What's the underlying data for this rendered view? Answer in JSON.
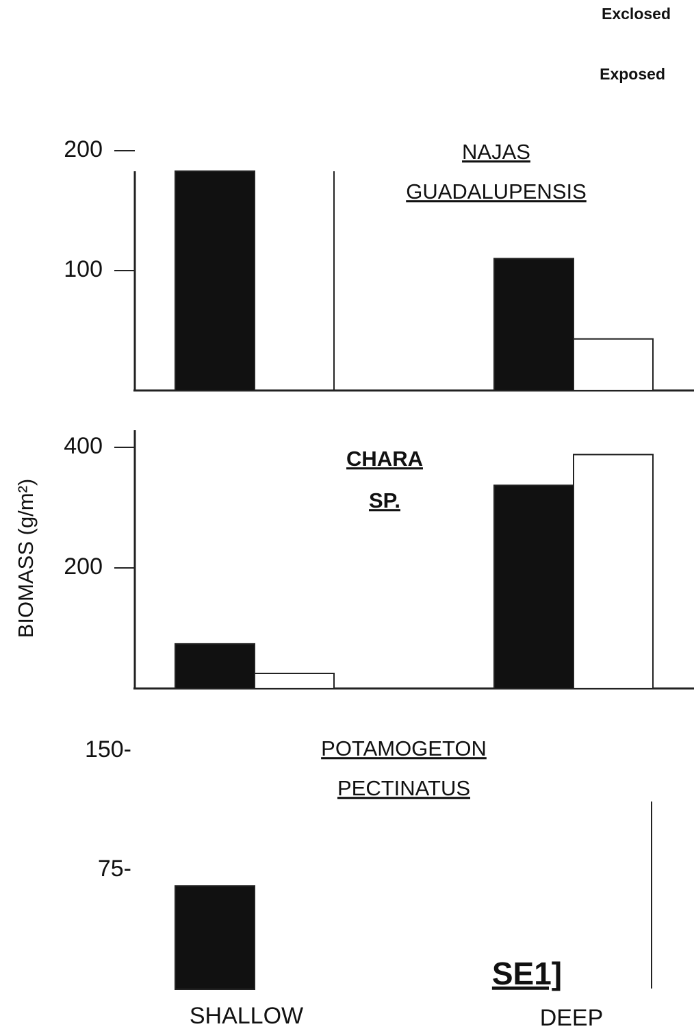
{
  "legend": [
    "Exclosed",
    "Exposed"
  ],
  "categories": [
    "SHALLOW",
    "DEEP"
  ],
  "y_label": "BIOMASS (g/m²)",
  "chart_data": [
    {
      "type": "bar",
      "title": [
        "NAJAS",
        "GUADALUPENSIS"
      ],
      "ylim": [
        0,
        200
      ],
      "yticks": [
        100,
        200
      ],
      "series": [
        {
          "color": "#111111",
          "values": [
            183,
            110
          ]
        },
        {
          "color": "#ffffff",
          "values": [
            0,
            43
          ]
        }
      ]
    },
    {
      "type": "bar",
      "title": [
        "CHARA",
        "SP."
      ],
      "ylim": [
        0,
        400
      ],
      "yticks": [
        200,
        400
      ],
      "series": [
        {
          "color": "#111111",
          "values": [
            74,
            337
          ]
        },
        {
          "color": "#ffffff",
          "values": [
            25,
            388
          ]
        }
      ]
    },
    {
      "type": "bar",
      "title": [
        "POTAMOGETON",
        "PECTINATUS"
      ],
      "ylim": [
        0,
        150
      ],
      "yticks": [
        {
          "value": 75,
          "label": "75-"
        },
        {
          "value": 150,
          "label": "150-"
        }
      ],
      "annotation": "SE1]",
      "series": [
        {
          "color": "#111111",
          "values": [
            65,
            0
          ]
        },
        {
          "color": "#ffffff",
          "values": [
            0,
            0
          ]
        }
      ]
    }
  ]
}
